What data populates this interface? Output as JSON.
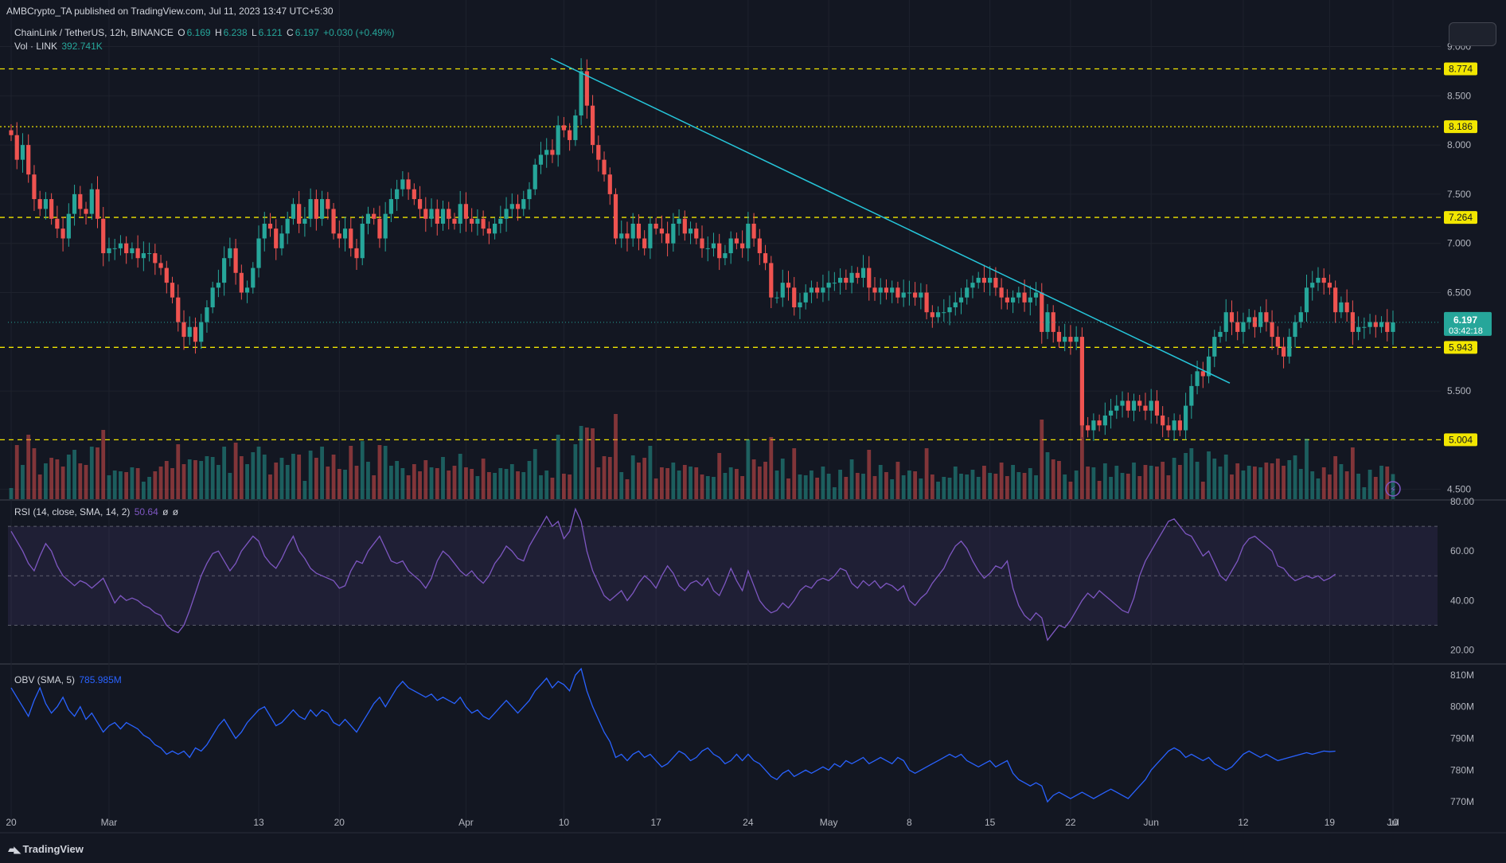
{
  "publisher_line": "AMBCrypto_TA published on TradingView.com, Jul 11, 2023 13:47 UTC+5:30",
  "symbol": {
    "name": "ChainLink / TetherUS, 12h, BINANCE",
    "o_label": "O",
    "o": "6.169",
    "h_label": "H",
    "h": "6.238",
    "l_label": "L",
    "l": "6.121",
    "c_label": "C",
    "c": "6.197",
    "change": "+0.030 (+0.49%)"
  },
  "volume": {
    "label": "Vol · LINK",
    "value": "392.741K"
  },
  "rsi": {
    "label": "RSI (14, close, SMA, 14, 2)",
    "value": "50.64",
    "extra1": "ø",
    "extra2": "ø"
  },
  "obv": {
    "label": "OBV (SMA, 5)",
    "value": "785.985M"
  },
  "brand": "TradingView",
  "colors": {
    "background": "#131722",
    "up": "#26a69a",
    "down": "#ef5350",
    "level": "#f2e600",
    "trendline": "#26c6da",
    "rsi": "#7e57c2",
    "obv": "#2962ff"
  },
  "chart_data": {
    "type": "candlestick",
    "title": "ChainLink / TetherUS, 12h, BINANCE",
    "x_ticks": [
      "20",
      "Mar",
      "13",
      "20",
      "Apr",
      "10",
      "17",
      "24",
      "May",
      "8",
      "15",
      "22",
      "Jun",
      "12",
      "19",
      "Jul",
      "10"
    ],
    "y_ticks": [
      "9.000",
      "8.500",
      "8.000",
      "7.500",
      "7.000",
      "6.500",
      "5.500",
      "4.500"
    ],
    "ylim": [
      4.4,
      9.15
    ],
    "price_levels": [
      "8.774",
      "8.186",
      "7.264",
      "5.943",
      "5.004"
    ],
    "current_price": "6.197",
    "countdown": "03:42:18",
    "trendline": {
      "from_price": 8.88,
      "to_price": 5.58
    },
    "closes": [
      8.1,
      7.85,
      8.0,
      7.7,
      7.45,
      7.35,
      7.45,
      7.25,
      7.15,
      7.05,
      7.3,
      7.5,
      7.35,
      7.3,
      7.55,
      7.25,
      6.9,
      6.95,
      6.95,
      7.0,
      6.9,
      6.95,
      6.85,
      6.9,
      6.9,
      6.8,
      6.75,
      6.6,
      6.45,
      6.2,
      6.05,
      6.15,
      6.0,
      6.2,
      6.35,
      6.55,
      6.6,
      6.85,
      6.95,
      6.7,
      6.5,
      6.55,
      6.75,
      7.05,
      7.2,
      7.15,
      6.95,
      7.1,
      7.25,
      7.4,
      7.2,
      7.25,
      7.45,
      7.25,
      7.45,
      7.35,
      7.1,
      7.05,
      7.15,
      6.95,
      6.85,
      7.2,
      7.3,
      7.25,
      7.05,
      7.3,
      7.45,
      7.55,
      7.65,
      7.55,
      7.45,
      7.35,
      7.25,
      7.35,
      7.2,
      7.35,
      7.25,
      7.2,
      7.4,
      7.25,
      7.2,
      7.25,
      7.15,
      7.1,
      7.2,
      7.25,
      7.35,
      7.4,
      7.35,
      7.45,
      7.55,
      7.8,
      7.9,
      7.95,
      7.9,
      8.2,
      8.15,
      8.05,
      8.3,
      8.75,
      8.4,
      8.0,
      7.85,
      7.7,
      7.5,
      7.05,
      7.1,
      7.05,
      7.2,
      7.05,
      6.95,
      7.2,
      7.15,
      7.1,
      7.0,
      7.2,
      7.25,
      7.1,
      7.15,
      7.05,
      6.95,
      6.95,
      7.0,
      6.85,
      6.9,
      7.05,
      7.0,
      6.95,
      7.2,
      7.05,
      6.9,
      6.8,
      6.45,
      6.45,
      6.6,
      6.55,
      6.35,
      6.4,
      6.5,
      6.55,
      6.5,
      6.55,
      6.6,
      6.6,
      6.65,
      6.6,
      6.7,
      6.65,
      6.75,
      6.55,
      6.5,
      6.55,
      6.5,
      6.55,
      6.45,
      6.5,
      6.5,
      6.45,
      6.5,
      6.3,
      6.25,
      6.3,
      6.3,
      6.35,
      6.4,
      6.45,
      6.55,
      6.6,
      6.65,
      6.6,
      6.65,
      6.55,
      6.45,
      6.4,
      6.45,
      6.5,
      6.4,
      6.45,
      6.5,
      6.1,
      6.3,
      6.1,
      6.0,
      6.05,
      6.0,
      6.05,
      5.15,
      5.1,
      5.2,
      5.15,
      5.25,
      5.3,
      5.35,
      5.4,
      5.3,
      5.4,
      5.35,
      5.3,
      5.4,
      5.25,
      5.15,
      5.1,
      5.2,
      5.1,
      5.35,
      5.55,
      5.7,
      5.65,
      5.85,
      6.05,
      6.1,
      6.3,
      6.2,
      6.1,
      6.2,
      6.25,
      6.15,
      6.3,
      6.2,
      6.05,
      5.95,
      5.85,
      6.05,
      6.2,
      6.3,
      6.55,
      6.6,
      6.65,
      6.6,
      6.55,
      6.3,
      6.4,
      6.3,
      6.1,
      6.15,
      6.15,
      6.2,
      6.15,
      6.2,
      6.1,
      6.197
    ],
    "rsi_values": [
      68,
      64,
      60,
      55,
      52,
      58,
      63,
      60,
      54,
      50,
      48,
      46,
      48,
      47,
      45,
      47,
      49,
      44,
      39,
      42,
      40,
      41,
      40,
      38,
      37,
      35,
      34,
      30,
      28,
      27,
      30,
      36,
      43,
      50,
      55,
      59,
      60,
      56,
      52,
      55,
      60,
      63,
      66,
      64,
      58,
      55,
      53,
      57,
      62,
      66,
      60,
      57,
      53,
      51,
      50,
      49,
      48,
      45,
      46,
      52,
      56,
      55,
      60,
      63,
      66,
      61,
      56,
      55,
      56,
      52,
      50,
      48,
      45,
      49,
      56,
      60,
      58,
      55,
      52,
      50,
      52,
      49,
      47,
      50,
      55,
      58,
      62,
      60,
      57,
      56,
      62,
      66,
      70,
      74,
      70,
      72,
      65,
      68,
      77,
      72,
      60,
      52,
      47,
      42,
      40,
      42,
      44,
      40,
      43,
      47,
      50,
      48,
      45,
      50,
      54,
      51,
      46,
      44,
      47,
      48,
      46,
      49,
      44,
      42,
      47,
      53,
      48,
      44,
      52,
      46,
      40,
      37,
      35,
      36,
      39,
      37,
      40,
      44,
      46,
      45,
      48,
      49,
      48,
      50,
      53,
      52,
      47,
      45,
      48,
      46,
      48,
      45,
      47,
      46,
      44,
      46,
      40,
      38,
      41,
      43,
      47,
      50,
      53,
      58,
      62,
      64,
      61,
      56,
      52,
      49,
      51,
      54,
      53,
      56,
      45,
      38,
      34,
      32,
      35,
      33,
      24,
      27,
      30,
      29,
      32,
      36,
      40,
      43,
      41,
      44,
      42,
      40,
      38,
      36,
      35,
      41,
      50,
      56,
      60,
      64,
      68,
      72,
      73,
      70,
      67,
      66,
      62,
      58,
      60,
      55,
      50,
      48,
      52,
      56,
      62,
      65,
      66,
      64,
      62,
      60,
      54,
      53,
      50,
      48,
      49,
      50,
      49,
      50,
      48,
      49,
      50.64
    ],
    "rsi_ylim": [
      15,
      80
    ],
    "rsi_ticks": [
      "80.00",
      "60.00",
      "40.00",
      "20.00"
    ],
    "obv_values": [
      806,
      803,
      800,
      797,
      802,
      806,
      801,
      798,
      800,
      803,
      799,
      797,
      800,
      796,
      798,
      795,
      792,
      794,
      795,
      793,
      795,
      794,
      793,
      791,
      790,
      788,
      787,
      785,
      786,
      785,
      786,
      784,
      787,
      786,
      788,
      791,
      794,
      796,
      793,
      790,
      792,
      795,
      797,
      799,
      800,
      797,
      794,
      795,
      797,
      799,
      797,
      796,
      799,
      797,
      799,
      798,
      795,
      794,
      796,
      794,
      792,
      795,
      798,
      801,
      803,
      800,
      803,
      806,
      808,
      806,
      805,
      804,
      803,
      804,
      802,
      803,
      802,
      801,
      803,
      800,
      798,
      799,
      797,
      796,
      798,
      800,
      802,
      800,
      798,
      800,
      802,
      805,
      807,
      809,
      806,
      808,
      807,
      805,
      810,
      812,
      805,
      800,
      796,
      792,
      789,
      784,
      785,
      783,
      785,
      786,
      784,
      785,
      783,
      781,
      782,
      784,
      786,
      785,
      783,
      784,
      786,
      787,
      785,
      784,
      782,
      783,
      785,
      783,
      785,
      783,
      782,
      780,
      778,
      777,
      779,
      780,
      778,
      779,
      780,
      779,
      780,
      781,
      780,
      782,
      781,
      783,
      782,
      783,
      784,
      782,
      783,
      784,
      783,
      782,
      784,
      783,
      780,
      779,
      780,
      781,
      782,
      783,
      784,
      785,
      784,
      785,
      783,
      782,
      781,
      782,
      783,
      781,
      782,
      783,
      779,
      777,
      776,
      775,
      776,
      775,
      770,
      772,
      773,
      772,
      771,
      772,
      773,
      772,
      771,
      772,
      773,
      774,
      773,
      772,
      771,
      773,
      775,
      777,
      780,
      782,
      784,
      786,
      787,
      786,
      784,
      785,
      784,
      783,
      784,
      782,
      781,
      780,
      781,
      783,
      785,
      786,
      785,
      784,
      785,
      784,
      783,
      783.5,
      784,
      784.5,
      785,
      785.5,
      785,
      785.5,
      786,
      785.8,
      785.985
    ],
    "obv_ylim": [
      766,
      813
    ],
    "obv_ticks": [
      "810M",
      "800M",
      "790M",
      "780M",
      "770M"
    ]
  }
}
